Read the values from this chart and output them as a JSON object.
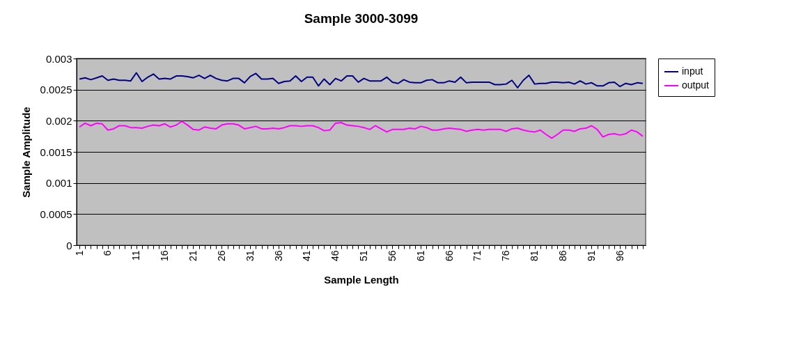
{
  "chart_data": {
    "type": "line",
    "title": "Sample 3000-3099",
    "xlabel": "Sample Length",
    "ylabel": "Sample Amplitude",
    "categories": [
      "1",
      null,
      null,
      null,
      null,
      "6",
      null,
      null,
      null,
      null,
      "11",
      null,
      null,
      null,
      null,
      "16",
      null,
      null,
      null,
      null,
      "21",
      null,
      null,
      null,
      null,
      "26",
      null,
      null,
      null,
      null,
      "31",
      null,
      null,
      null,
      null,
      "36",
      null,
      null,
      null,
      null,
      "41",
      null,
      null,
      null,
      null,
      "46",
      null,
      null,
      null,
      null,
      "51",
      null,
      null,
      null,
      null,
      "56",
      null,
      null,
      null,
      null,
      "61",
      null,
      null,
      null,
      null,
      "66",
      null,
      null,
      null,
      null,
      "71",
      null,
      null,
      null,
      null,
      "76",
      null,
      null,
      null,
      null,
      "81",
      null,
      null,
      null,
      null,
      "86",
      null,
      null,
      null,
      null,
      "91",
      null,
      null,
      null,
      null,
      "96",
      null,
      null,
      null,
      null
    ],
    "series": [
      {
        "name": "input",
        "color": "#000080",
        "values": [
          0.00267,
          0.00269,
          0.00266,
          0.00269,
          0.00272,
          0.00265,
          0.00267,
          0.00265,
          0.00265,
          0.00264,
          0.00277,
          0.00263,
          0.0027,
          0.00275,
          0.00267,
          0.00268,
          0.00267,
          0.00272,
          0.00272,
          0.00271,
          0.00269,
          0.00273,
          0.00268,
          0.00273,
          0.00268,
          0.00265,
          0.00264,
          0.00268,
          0.00268,
          0.00261,
          0.00271,
          0.00276,
          0.00267,
          0.00267,
          0.00268,
          0.0026,
          0.00263,
          0.00264,
          0.00272,
          0.00263,
          0.0027,
          0.0027,
          0.00256,
          0.00267,
          0.00258,
          0.00268,
          0.00264,
          0.00272,
          0.00272,
          0.00262,
          0.00268,
          0.00264,
          0.00264,
          0.00264,
          0.0027,
          0.00262,
          0.0026,
          0.00266,
          0.00262,
          0.00261,
          0.00261,
          0.00265,
          0.00266,
          0.00261,
          0.00261,
          0.00264,
          0.00262,
          0.0027,
          0.00261,
          0.00262,
          0.00262,
          0.00262,
          0.00262,
          0.00258,
          0.00258,
          0.00259,
          0.00265,
          0.00253,
          0.00265,
          0.00273,
          0.00259,
          0.0026,
          0.0026,
          0.00262,
          0.00262,
          0.00261,
          0.00262,
          0.00259,
          0.00264,
          0.00259,
          0.00261,
          0.00256,
          0.00256,
          0.00261,
          0.00262,
          0.00255,
          0.0026,
          0.00258,
          0.00261,
          0.0026
        ]
      },
      {
        "name": "output",
        "color": "#ff00ff",
        "values": [
          0.0019,
          0.00196,
          0.00192,
          0.00196,
          0.00195,
          0.00185,
          0.00187,
          0.00192,
          0.00192,
          0.00189,
          0.00189,
          0.00188,
          0.00191,
          0.00193,
          0.00192,
          0.00195,
          0.0019,
          0.00193,
          0.00199,
          0.00193,
          0.00186,
          0.00185,
          0.0019,
          0.00188,
          0.00187,
          0.00193,
          0.00195,
          0.00195,
          0.00193,
          0.00187,
          0.00189,
          0.00191,
          0.00187,
          0.00187,
          0.00188,
          0.00187,
          0.00189,
          0.00192,
          0.00192,
          0.00191,
          0.00192,
          0.00192,
          0.00189,
          0.00184,
          0.00185,
          0.00196,
          0.00197,
          0.00193,
          0.00192,
          0.00191,
          0.00189,
          0.00186,
          0.00192,
          0.00187,
          0.00182,
          0.00186,
          0.00186,
          0.00186,
          0.00188,
          0.00187,
          0.00191,
          0.00189,
          0.00185,
          0.00185,
          0.00187,
          0.00188,
          0.00187,
          0.00186,
          0.00183,
          0.00185,
          0.00186,
          0.00185,
          0.00186,
          0.00186,
          0.00186,
          0.00183,
          0.00187,
          0.00188,
          0.00185,
          0.00183,
          0.00182,
          0.00185,
          0.00178,
          0.00172,
          0.00178,
          0.00185,
          0.00185,
          0.00183,
          0.00187,
          0.00188,
          0.00192,
          0.00186,
          0.00174,
          0.00178,
          0.00179,
          0.00177,
          0.00179,
          0.00185,
          0.00182,
          0.00175
        ]
      }
    ],
    "ylim": [
      0,
      0.003
    ],
    "yticks": [
      0,
      0.0005,
      0.001,
      0.0015,
      0.002,
      0.0025,
      0.003
    ],
    "grid": "y",
    "legend": "right",
    "marker": "none",
    "line_style": "solid"
  }
}
